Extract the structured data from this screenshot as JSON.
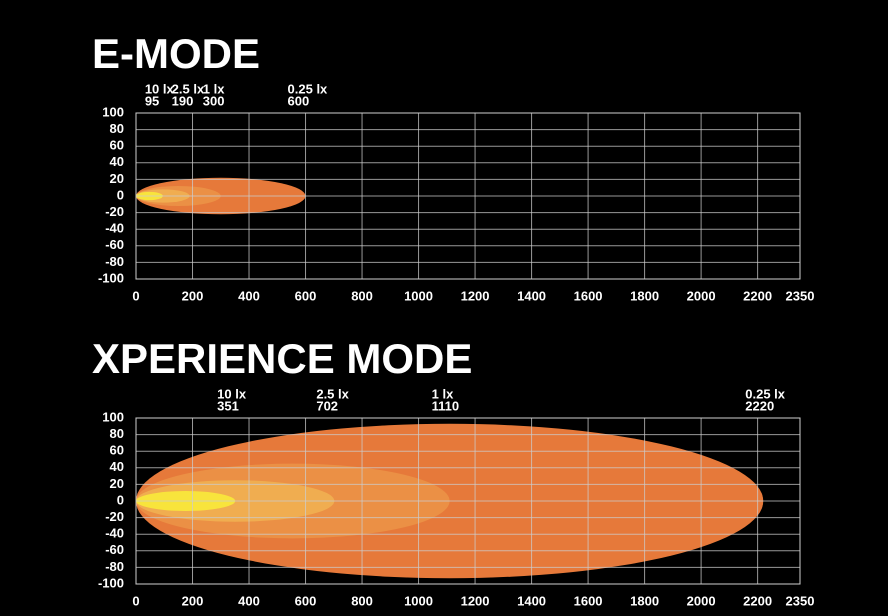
{
  "chart_data": [
    {
      "type": "beam",
      "title": "E-MODE",
      "xlim": [
        0,
        2350
      ],
      "xticks": [
        0,
        200,
        400,
        600,
        800,
        1000,
        1200,
        1400,
        1600,
        1800,
        2000,
        2200,
        2350
      ],
      "ylim": [
        -100,
        100
      ],
      "yticks": [
        100,
        80,
        60,
        40,
        20,
        0,
        -20,
        -40,
        -60,
        -80,
        -100
      ],
      "grid": true,
      "series": [
        {
          "name": "0.25 lx",
          "color": "#e6793a",
          "distance": 600,
          "halfwidth": 22
        },
        {
          "name": "1 lx",
          "color": "#eb9045",
          "distance": 300,
          "halfwidth": 12
        },
        {
          "name": "2.5 lx",
          "color": "#f0ad50",
          "distance": 190,
          "halfwidth": 8
        },
        {
          "name": "10 lx",
          "color": "#f8e43c",
          "distance": 95,
          "halfwidth": 5
        }
      ]
    },
    {
      "type": "beam",
      "title": "XPERIENCE MODE",
      "xlim": [
        0,
        2350
      ],
      "xticks": [
        0,
        200,
        400,
        600,
        800,
        1000,
        1200,
        1400,
        1600,
        1800,
        2000,
        2200,
        2350
      ],
      "ylim": [
        -100,
        100
      ],
      "yticks": [
        100,
        80,
        60,
        40,
        20,
        0,
        -20,
        -40,
        -60,
        -80,
        -100
      ],
      "grid": true,
      "series": [
        {
          "name": "0.25 lx",
          "color": "#e6793a",
          "distance": 2220,
          "halfwidth": 93
        },
        {
          "name": "1 lx",
          "color": "#eb9045",
          "distance": 1110,
          "halfwidth": 45
        },
        {
          "name": "2.5 lx",
          "color": "#f0ad50",
          "distance": 702,
          "halfwidth": 25
        },
        {
          "name": "10 lx",
          "color": "#f8e43c",
          "distance": 351,
          "halfwidth": 12
        }
      ]
    }
  ]
}
